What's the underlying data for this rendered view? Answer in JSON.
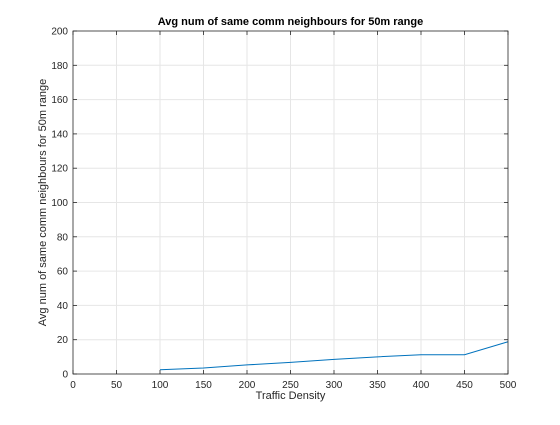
{
  "chart_data": {
    "type": "line",
    "title": "Avg num of same comm neighbours for 50m range",
    "xlabel": "Traffic Density",
    "ylabel": "Avg num of same comm neighbours for 50m range",
    "xlim": [
      0,
      500
    ],
    "ylim": [
      0,
      200
    ],
    "xticks": [
      "0",
      "50",
      "100",
      "150",
      "200",
      "250",
      "300",
      "350",
      "400",
      "450",
      "500"
    ],
    "yticks": [
      "0",
      "20",
      "40",
      "60",
      "80",
      "100",
      "120",
      "140",
      "160",
      "180",
      "200"
    ],
    "grid": true,
    "series": [
      {
        "x": [
          100,
          150,
          200,
          250,
          300,
          350,
          400,
          450,
          500
        ],
        "y": [
          2.5,
          3.5,
          5.3,
          6.8,
          8.5,
          10.0,
          11.2,
          11.2,
          18.8
        ]
      }
    ],
    "colors": {
      "line": "#0072bd",
      "grid": "#e6e6e6",
      "axis": "#262626"
    }
  }
}
